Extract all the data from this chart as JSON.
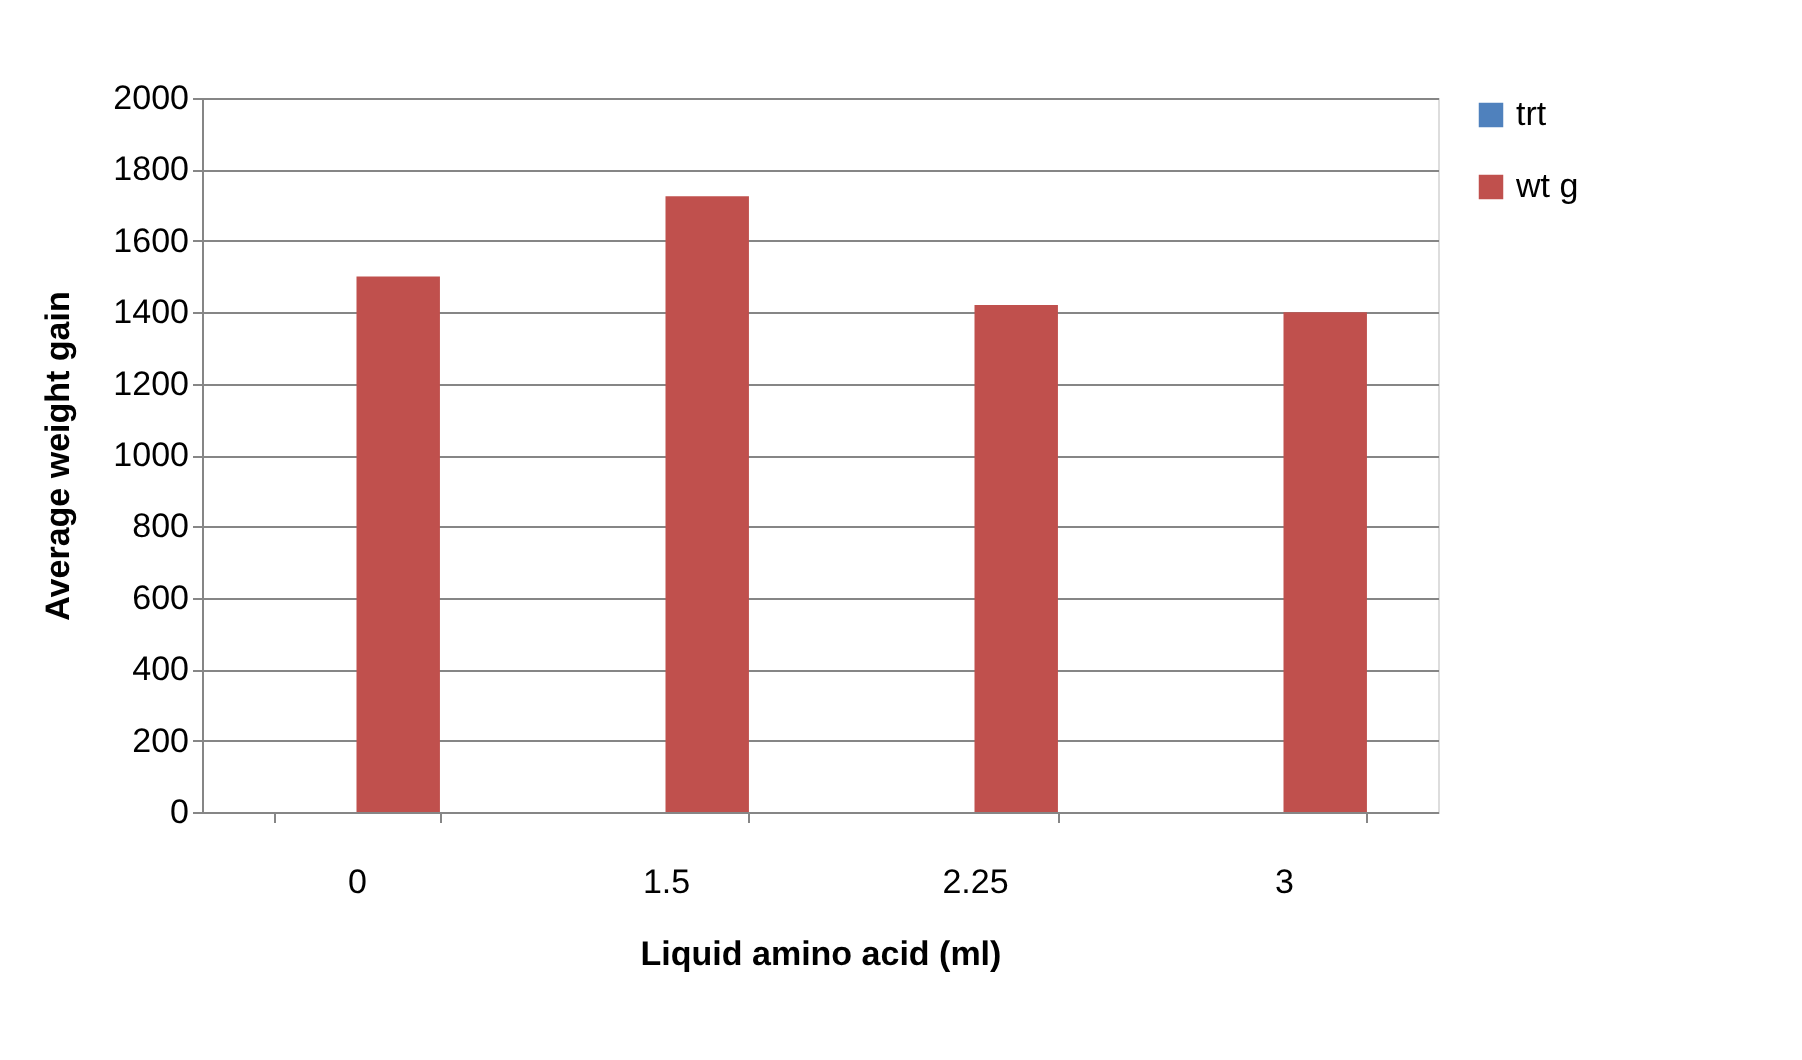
{
  "chart_data": {
    "type": "bar",
    "xlabel": "Liquid amino acid (ml)",
    "ylabel": "Average weight gain",
    "categories": [
      "0",
      "1.5",
      "2.25",
      "3"
    ],
    "series": [
      {
        "name": "trt",
        "color": "#4f81bd",
        "values": [
          0,
          0,
          0,
          0
        ]
      },
      {
        "name": "wt g",
        "color": "#c0504d",
        "values": [
          1500,
          1725,
          1420,
          1400
        ]
      }
    ],
    "ylim": [
      0,
      2000
    ],
    "yticks": [
      0,
      200,
      400,
      600,
      800,
      1000,
      1200,
      1400,
      1600,
      1800,
      2000
    ],
    "grid": "y",
    "legend": "right"
  }
}
